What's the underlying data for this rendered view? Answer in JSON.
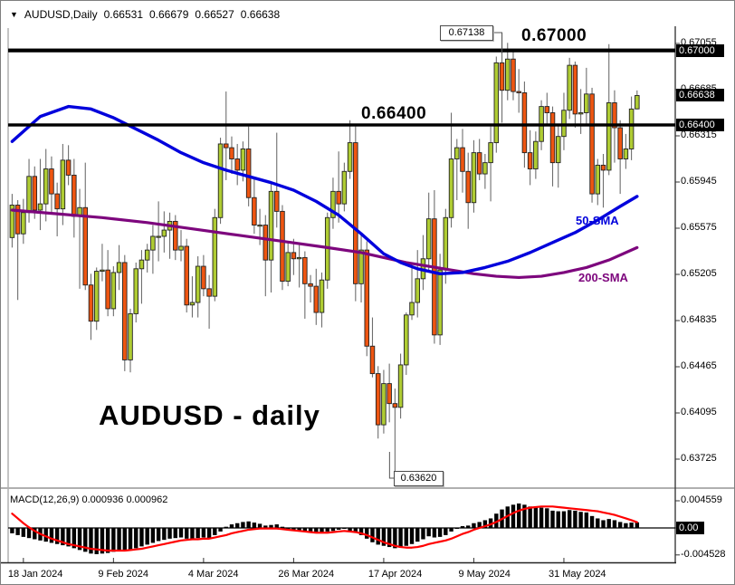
{
  "header": {
    "dropdown_icon": "▼",
    "symbol": "AUDUSD,Daily",
    "open": "0.66531",
    "high": "0.66679",
    "low": "0.66527",
    "close": "0.66638"
  },
  "colors": {
    "bull": "#AFCC33",
    "bear": "#EE5511",
    "wick": "#6e6e6e",
    "body_outline": "#222222",
    "sma50": "#0000DC",
    "sma200": "#7D067D",
    "macd_signal": "#FF0000",
    "macd_histogram": "#000000",
    "level": "#000000",
    "border": "#8a8a8a",
    "box_bg": "#000000",
    "box_text": "#FFFFFF"
  },
  "chart_data": {
    "type": "candlestick",
    "symbol": "AUDUSD",
    "timeframe": "Daily",
    "title_watermark": "AUDUSD - daily",
    "levels": [
      {
        "label": "0.67000",
        "value": 0.67
      },
      {
        "label": "0.66400",
        "value": 0.664
      }
    ],
    "annotations": {
      "high_callout": {
        "text": "0.67138",
        "anchor_index": 87,
        "anchor_price": 0.67138
      },
      "low_callout": {
        "text": "0.63620",
        "anchor_index": 68,
        "anchor_price": 0.6362
      },
      "sma50_label": "50-SMA",
      "sma200_label": "200-SMA"
    },
    "y_axis": {
      "ticks": [
        {
          "label": "0.67055",
          "value": 0.67055
        },
        {
          "label": "0.66685",
          "value": 0.66685
        },
        {
          "label": "0.66315",
          "value": 0.66315
        },
        {
          "label": "0.65945",
          "value": 0.65945
        },
        {
          "label": "0.65575",
          "value": 0.65575
        },
        {
          "label": "0.65205",
          "value": 0.65205
        },
        {
          "label": "0.64835",
          "value": 0.64835
        },
        {
          "label": "0.64465",
          "value": 0.64465
        },
        {
          "label": "0.64095",
          "value": 0.64095
        },
        {
          "label": "0.63725",
          "value": 0.63725
        }
      ]
    },
    "price_boxes": [
      {
        "label": "0.67000",
        "value": 0.67
      },
      {
        "label": "0.66638",
        "value": 0.66638
      },
      {
        "label": "0.66400",
        "value": 0.664
      }
    ],
    "x_axis": {
      "ticks": [
        {
          "label": "18 Jan 2024",
          "index": 2
        },
        {
          "label": "9 Feb 2024",
          "index": 18
        },
        {
          "label": "4 Mar 2024",
          "index": 34
        },
        {
          "label": "26 Mar 2024",
          "index": 50
        },
        {
          "label": "17 Apr 2024",
          "index": 66
        },
        {
          "label": "9 May 2024",
          "index": 82
        },
        {
          "label": "31 May 2024",
          "index": 98
        }
      ]
    },
    "candles": [
      [
        0.655,
        0.6585,
        0.6542,
        0.6576
      ],
      [
        0.6576,
        0.658,
        0.65,
        0.6553
      ],
      [
        0.6553,
        0.6581,
        0.6545,
        0.657
      ],
      [
        0.657,
        0.6613,
        0.6562,
        0.6599
      ],
      [
        0.6599,
        0.6607,
        0.6565,
        0.6572
      ],
      [
        0.6572,
        0.6613,
        0.6556,
        0.6577
      ],
      [
        0.6577,
        0.6621,
        0.6563,
        0.6605
      ],
      [
        0.6605,
        0.6615,
        0.657,
        0.6585
      ],
      [
        0.6585,
        0.6594,
        0.6551,
        0.6573
      ],
      [
        0.6573,
        0.6625,
        0.656,
        0.6612
      ],
      [
        0.6612,
        0.6624,
        0.6592,
        0.66
      ],
      [
        0.66,
        0.6613,
        0.655,
        0.6567
      ],
      [
        0.6567,
        0.6589,
        0.6509,
        0.6574
      ],
      [
        0.6574,
        0.661,
        0.6508,
        0.6512
      ],
      [
        0.6512,
        0.6521,
        0.6468,
        0.6483
      ],
      [
        0.6483,
        0.6526,
        0.6476,
        0.6523
      ],
      [
        0.6523,
        0.6545,
        0.6515,
        0.6524
      ],
      [
        0.6524,
        0.654,
        0.6487,
        0.6493
      ],
      [
        0.6493,
        0.6527,
        0.6487,
        0.6522
      ],
      [
        0.6522,
        0.6544,
        0.6508,
        0.653
      ],
      [
        0.653,
        0.6536,
        0.6443,
        0.6452
      ],
      [
        0.6452,
        0.6493,
        0.6442,
        0.6489
      ],
      [
        0.6489,
        0.653,
        0.6482,
        0.6525
      ],
      [
        0.6525,
        0.654,
        0.6497,
        0.6532
      ],
      [
        0.6532,
        0.6545,
        0.6522,
        0.654
      ],
      [
        0.654,
        0.656,
        0.6521,
        0.6551
      ],
      [
        0.6551,
        0.6579,
        0.6531,
        0.6551
      ],
      [
        0.6551,
        0.6571,
        0.6538,
        0.6556
      ],
      [
        0.6556,
        0.657,
        0.6533,
        0.6563
      ],
      [
        0.6563,
        0.6568,
        0.6532,
        0.654
      ],
      [
        0.654,
        0.6556,
        0.6531,
        0.6543
      ],
      [
        0.6543,
        0.6549,
        0.649,
        0.6496
      ],
      [
        0.6496,
        0.6519,
        0.6486,
        0.6498
      ],
      [
        0.6498,
        0.6535,
        0.6486,
        0.6527
      ],
      [
        0.6527,
        0.6536,
        0.6503,
        0.6509
      ],
      [
        0.6509,
        0.652,
        0.6477,
        0.6503
      ],
      [
        0.6503,
        0.6573,
        0.6499,
        0.6566
      ],
      [
        0.6566,
        0.663,
        0.6561,
        0.6625
      ],
      [
        0.6625,
        0.6667,
        0.6596,
        0.6622
      ],
      [
        0.6622,
        0.6631,
        0.6601,
        0.6613
      ],
      [
        0.6613,
        0.6625,
        0.6592,
        0.6604
      ],
      [
        0.6604,
        0.6627,
        0.6595,
        0.6621
      ],
      [
        0.6621,
        0.6639,
        0.6575,
        0.6582
      ],
      [
        0.6582,
        0.6598,
        0.6553,
        0.656
      ],
      [
        0.656,
        0.6573,
        0.6544,
        0.656
      ],
      [
        0.656,
        0.6568,
        0.6503,
        0.6532
      ],
      [
        0.6532,
        0.6595,
        0.6506,
        0.6587
      ],
      [
        0.6587,
        0.6634,
        0.6558,
        0.6571
      ],
      [
        0.6571,
        0.6576,
        0.6508,
        0.6515
      ],
      [
        0.6515,
        0.6547,
        0.6511,
        0.6538
      ],
      [
        0.6538,
        0.6549,
        0.652,
        0.6533
      ],
      [
        0.6533,
        0.6544,
        0.651,
        0.6534
      ],
      [
        0.6534,
        0.6539,
        0.6485,
        0.6513
      ],
      [
        0.6513,
        0.652,
        0.6498,
        0.6511
      ],
      [
        0.6511,
        0.6525,
        0.648,
        0.649
      ],
      [
        0.649,
        0.6522,
        0.6478,
        0.6516
      ],
      [
        0.6516,
        0.657,
        0.6509,
        0.6566
      ],
      [
        0.6566,
        0.6598,
        0.6557,
        0.6587
      ],
      [
        0.6587,
        0.6619,
        0.6562,
        0.6577
      ],
      [
        0.6577,
        0.661,
        0.6571,
        0.6603
      ],
      [
        0.6603,
        0.6644,
        0.6597,
        0.6626
      ],
      [
        0.6626,
        0.6639,
        0.6499,
        0.6513
      ],
      [
        0.6513,
        0.6554,
        0.6498,
        0.654
      ],
      [
        0.654,
        0.6547,
        0.6455,
        0.6463
      ],
      [
        0.6463,
        0.6486,
        0.6438,
        0.6441
      ],
      [
        0.6441,
        0.6447,
        0.6389,
        0.64
      ],
      [
        0.64,
        0.6444,
        0.6393,
        0.6433
      ],
      [
        0.6433,
        0.6449,
        0.6402,
        0.6417
      ],
      [
        0.6417,
        0.6429,
        0.6362,
        0.6414
      ],
      [
        0.6414,
        0.6457,
        0.6405,
        0.6448
      ],
      [
        0.6448,
        0.649,
        0.644,
        0.6488
      ],
      [
        0.6488,
        0.653,
        0.6484,
        0.6498
      ],
      [
        0.6498,
        0.654,
        0.6486,
        0.6517
      ],
      [
        0.6517,
        0.6552,
        0.6508,
        0.6533
      ],
      [
        0.6533,
        0.6586,
        0.6524,
        0.6565
      ],
      [
        0.6565,
        0.6588,
        0.6465,
        0.6472
      ],
      [
        0.6472,
        0.6537,
        0.6464,
        0.6524
      ],
      [
        0.6524,
        0.6573,
        0.6513,
        0.6566
      ],
      [
        0.6566,
        0.665,
        0.6558,
        0.6613
      ],
      [
        0.6613,
        0.6629,
        0.658,
        0.6622
      ],
      [
        0.6622,
        0.6637,
        0.6586,
        0.6603
      ],
      [
        0.6603,
        0.6618,
        0.6557,
        0.6578
      ],
      [
        0.6578,
        0.6628,
        0.657,
        0.6618
      ],
      [
        0.6618,
        0.6629,
        0.6596,
        0.6601
      ],
      [
        0.6601,
        0.6617,
        0.6589,
        0.661
      ],
      [
        0.661,
        0.6639,
        0.6579,
        0.6626
      ],
      [
        0.6626,
        0.6695,
        0.6618,
        0.669
      ],
      [
        0.669,
        0.67138,
        0.6642,
        0.6668
      ],
      [
        0.6668,
        0.6706,
        0.666,
        0.6693
      ],
      [
        0.6693,
        0.67,
        0.666,
        0.6667
      ],
      [
        0.6667,
        0.6685,
        0.665,
        0.6666
      ],
      [
        0.6666,
        0.6675,
        0.6606,
        0.6618
      ],
      [
        0.6618,
        0.6636,
        0.6592,
        0.6605
      ],
      [
        0.6605,
        0.6635,
        0.6597,
        0.6627
      ],
      [
        0.6627,
        0.666,
        0.662,
        0.6655
      ],
      [
        0.6655,
        0.6666,
        0.664,
        0.665
      ],
      [
        0.665,
        0.6655,
        0.6591,
        0.661
      ],
      [
        0.661,
        0.664,
        0.659,
        0.6631
      ],
      [
        0.6631,
        0.6666,
        0.662,
        0.6652
      ],
      [
        0.6652,
        0.6694,
        0.6645,
        0.6688
      ],
      [
        0.6688,
        0.6691,
        0.6638,
        0.6649
      ],
      [
        0.6649,
        0.6669,
        0.6633,
        0.665
      ],
      [
        0.665,
        0.6686,
        0.6641,
        0.6665
      ],
      [
        0.6665,
        0.667,
        0.6578,
        0.6585
      ],
      [
        0.6585,
        0.6613,
        0.6576,
        0.6608
      ],
      [
        0.6608,
        0.6617,
        0.6574,
        0.6604
      ],
      [
        0.6604,
        0.6705,
        0.66,
        0.6658
      ],
      [
        0.6658,
        0.6668,
        0.661,
        0.6638
      ],
      [
        0.6638,
        0.6644,
        0.6585,
        0.6613
      ],
      [
        0.6613,
        0.6633,
        0.6605,
        0.6621
      ],
      [
        0.6621,
        0.6663,
        0.6612,
        0.6653
      ],
      [
        0.66531,
        0.66679,
        0.66527,
        0.66638
      ]
    ],
    "sma50": [
      [
        0,
        0.6627
      ],
      [
        5,
        0.6647
      ],
      [
        10,
        0.6655
      ],
      [
        14,
        0.6653
      ],
      [
        18,
        0.6646
      ],
      [
        22,
        0.6637
      ],
      [
        26,
        0.6628
      ],
      [
        30,
        0.6618
      ],
      [
        34,
        0.661
      ],
      [
        38,
        0.6604
      ],
      [
        42,
        0.6599
      ],
      [
        46,
        0.6594
      ],
      [
        50,
        0.6588
      ],
      [
        54,
        0.6579
      ],
      [
        58,
        0.6568
      ],
      [
        62,
        0.6553
      ],
      [
        66,
        0.6537
      ],
      [
        69,
        0.653
      ],
      [
        72,
        0.6525
      ],
      [
        76,
        0.6521
      ],
      [
        80,
        0.6522
      ],
      [
        84,
        0.6526
      ],
      [
        88,
        0.6531
      ],
      [
        92,
        0.6538
      ],
      [
        96,
        0.6546
      ],
      [
        100,
        0.6554
      ],
      [
        104,
        0.6564
      ],
      [
        108,
        0.6575
      ],
      [
        111,
        0.6583
      ]
    ],
    "sma200": [
      [
        0,
        0.6572
      ],
      [
        8,
        0.6569
      ],
      [
        16,
        0.6566
      ],
      [
        24,
        0.6562
      ],
      [
        32,
        0.6557
      ],
      [
        40,
        0.6552
      ],
      [
        48,
        0.6547
      ],
      [
        56,
        0.6542
      ],
      [
        62,
        0.6538
      ],
      [
        66,
        0.6534
      ],
      [
        70,
        0.653
      ],
      [
        74,
        0.6527
      ],
      [
        78,
        0.6524
      ],
      [
        82,
        0.6521
      ],
      [
        86,
        0.6519
      ],
      [
        90,
        0.6518
      ],
      [
        94,
        0.6519
      ],
      [
        98,
        0.6522
      ],
      [
        102,
        0.6526
      ],
      [
        106,
        0.6532
      ],
      [
        111,
        0.6542
      ]
    ],
    "macd": {
      "label": "MACD(12,26,9)",
      "macd_value": "0.000936",
      "signal_value": "0.000962",
      "y_ticks": [
        {
          "label": "0.004559",
          "value": 0.004559,
          "boxed": false
        },
        {
          "label": "0.00",
          "value": 0,
          "boxed": true
        },
        {
          "label": "-0.004528",
          "value": -0.004528,
          "boxed": false
        }
      ],
      "histogram": [
        -0.0009,
        -0.0012,
        -0.0015,
        -0.0017,
        -0.0019,
        -0.0021,
        -0.0023,
        -0.0025,
        -0.0027,
        -0.0029,
        -0.0031,
        -0.0034,
        -0.0037,
        -0.004,
        -0.0043,
        -0.0044,
        -0.0043,
        -0.0042,
        -0.004,
        -0.0038,
        -0.0039,
        -0.0037,
        -0.0034,
        -0.0031,
        -0.0028,
        -0.0025,
        -0.0022,
        -0.002,
        -0.0018,
        -0.0017,
        -0.0016,
        -0.0018,
        -0.0019,
        -0.0017,
        -0.0016,
        -0.0017,
        -0.0012,
        -0.0006,
        0.0002,
        0.0006,
        0.0008,
        0.001,
        0.0011,
        0.0009,
        0.0007,
        0.0004,
        0.0005,
        0.0006,
        0.0002,
        -0.0001,
        -0.0003,
        -0.0004,
        -0.0006,
        -0.0008,
        -0.0009,
        -0.0008,
        -0.0006,
        -0.0005,
        -0.0003,
        -0.0001,
        -0.0005,
        -0.0007,
        -0.0012,
        -0.0018,
        -0.0024,
        -0.0028,
        -0.003,
        -0.0032,
        -0.0034,
        -0.0033,
        -0.003,
        -0.0027,
        -0.0023,
        -0.0019,
        -0.0014,
        -0.0016,
        -0.0015,
        -0.0012,
        -0.0006,
        -0.0001,
        0.0003,
        0.0004,
        0.0008,
        0.001,
        0.0013,
        0.0016,
        0.0024,
        0.0031,
        0.0036,
        0.0039,
        0.0041,
        0.0039,
        0.0036,
        0.0034,
        0.0034,
        0.0033,
        0.0029,
        0.0028,
        0.0028,
        0.003,
        0.0029,
        0.0027,
        0.0026,
        0.002,
        0.0016,
        0.0013,
        0.0015,
        0.0013,
        0.001,
        0.0008,
        0.0009,
        0.000936
      ],
      "signal": [
        0.0024,
        0.0016,
        0.0008,
        0.0001,
        -0.0005,
        -0.001,
        -0.0014,
        -0.0018,
        -0.0021,
        -0.0024,
        -0.0027,
        -0.0029,
        -0.0031,
        -0.0033,
        -0.0035,
        -0.0036,
        -0.0037,
        -0.0038,
        -0.0038,
        -0.0038,
        -0.0038,
        -0.0037,
        -0.0036,
        -0.0035,
        -0.0033,
        -0.0031,
        -0.0029,
        -0.0027,
        -0.0025,
        -0.0023,
        -0.0021,
        -0.002,
        -0.0019,
        -0.0019,
        -0.0018,
        -0.0018,
        -0.0016,
        -0.0014,
        -0.0012,
        -0.0009,
        -0.0007,
        -0.0005,
        -0.0003,
        -0.0002,
        -0.0001,
        -0.0001,
        -0.0001,
        -0.0001,
        -0.0002,
        -0.0003,
        -0.0004,
        -0.0005,
        -0.0006,
        -0.0007,
        -0.0008,
        -0.0008,
        -0.0008,
        -0.0007,
        -0.0006,
        -0.0005,
        -0.0006,
        -0.0007,
        -0.0009,
        -0.0012,
        -0.0016,
        -0.002,
        -0.0024,
        -0.0027,
        -0.003,
        -0.0032,
        -0.0033,
        -0.0033,
        -0.0032,
        -0.003,
        -0.0027,
        -0.0025,
        -0.0023,
        -0.0021,
        -0.0018,
        -0.0014,
        -0.001,
        -0.0007,
        -0.0003,
        0.0,
        0.0003,
        0.0006,
        0.001,
        0.0015,
        0.002,
        0.0025,
        0.0029,
        0.0032,
        0.0034,
        0.0035,
        0.0036,
        0.0036,
        0.0036,
        0.0035,
        0.0034,
        0.0033,
        0.0032,
        0.0031,
        0.003,
        0.0029,
        0.0028,
        0.0026,
        0.0024,
        0.0022,
        0.0019,
        0.0016,
        0.0013,
        0.000962
      ]
    }
  }
}
